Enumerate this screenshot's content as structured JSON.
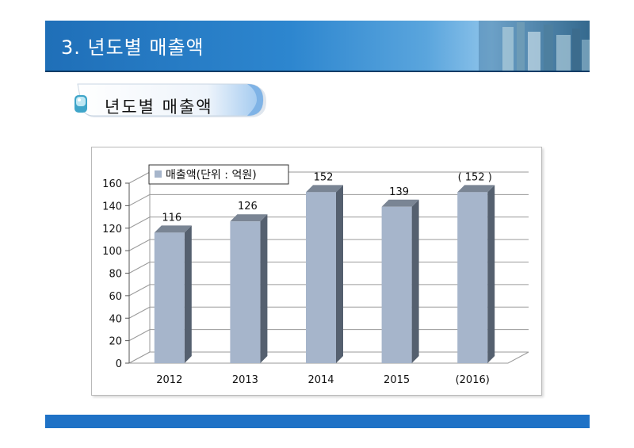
{
  "header": {
    "title": "3. 년도별 매출액"
  },
  "subtitle": {
    "label": "년도별 매출액"
  },
  "chart_data": {
    "type": "bar",
    "categories": [
      "2012",
      "2013",
      "2014",
      "2015",
      "(2016)"
    ],
    "series": [
      {
        "name": "매출액(단위 : 억원)",
        "values": [
          116,
          126,
          152,
          139,
          152
        ]
      }
    ],
    "data_labels": [
      "116",
      "126",
      "152",
      "139",
      "( 152 )"
    ],
    "ylim": [
      0,
      160
    ],
    "yticks": [
      0,
      20,
      40,
      60,
      80,
      100,
      120,
      140,
      160
    ],
    "grid": true,
    "legend_position": "top-left",
    "three_d": true,
    "colors": {
      "bar_front": "#a6b5cb",
      "bar_side": "#55606f",
      "bar_top": "#7a8594"
    }
  }
}
